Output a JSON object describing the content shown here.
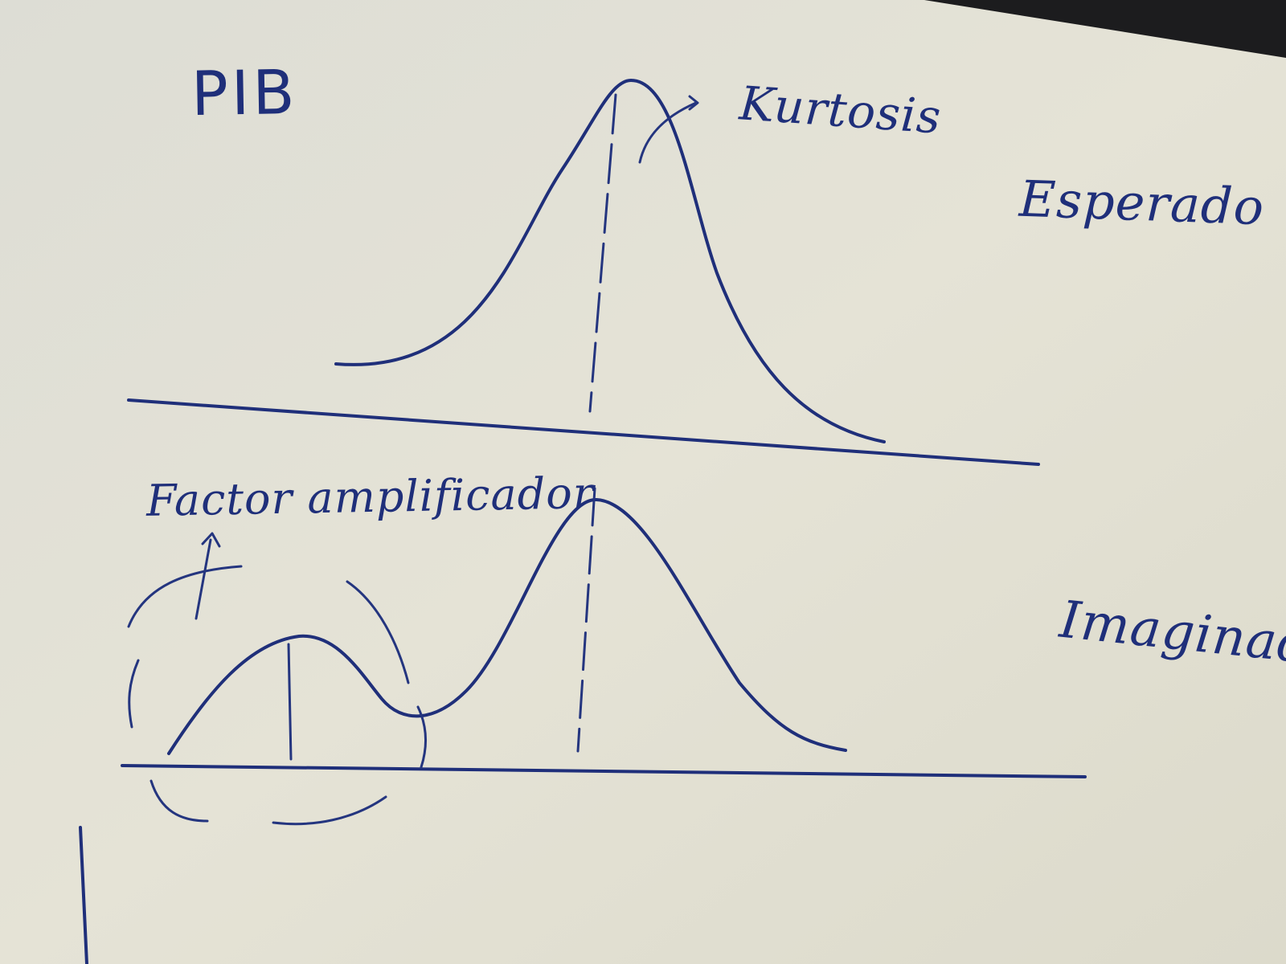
{
  "labels": {
    "title": "PIB",
    "kurtosis": "Kurtosis",
    "top_curve": "Esperado",
    "amplifier": "Factor amplificador",
    "bottom_curve": "Imaginado"
  },
  "colors": {
    "ink": "#1f2f7a",
    "paper": "#e3e1d4",
    "background": "#1c1c1e"
  }
}
